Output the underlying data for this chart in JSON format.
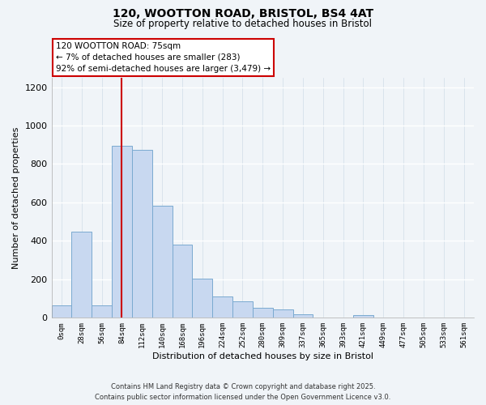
{
  "title": "120, WOOTTON ROAD, BRISTOL, BS4 4AT",
  "subtitle": "Size of property relative to detached houses in Bristol",
  "xlabel": "Distribution of detached houses by size in Bristol",
  "ylabel": "Number of detached properties",
  "bar_color": "#c8d8f0",
  "bar_edge_color": "#7aaad0",
  "bin_labels": [
    "0sqm",
    "28sqm",
    "56sqm",
    "84sqm",
    "112sqm",
    "140sqm",
    "168sqm",
    "196sqm",
    "224sqm",
    "252sqm",
    "280sqm",
    "309sqm",
    "337sqm",
    "365sqm",
    "393sqm",
    "421sqm",
    "449sqm",
    "477sqm",
    "505sqm",
    "533sqm",
    "561sqm"
  ],
  "bar_heights": [
    65,
    450,
    65,
    895,
    875,
    585,
    380,
    205,
    110,
    85,
    52,
    45,
    18,
    0,
    0,
    15,
    0,
    0,
    0,
    0,
    0
  ],
  "ylim": [
    0,
    1250
  ],
  "yticks": [
    0,
    200,
    400,
    600,
    800,
    1000,
    1200
  ],
  "vertical_line_x": 3.0,
  "vline_color": "#cc0000",
  "annotation_title": "120 WOOTTON ROAD: 75sqm",
  "annotation_line1": "← 7% of detached houses are smaller (283)",
  "annotation_line2": "92% of semi-detached houses are larger (3,479) →",
  "annotation_box_color": "#ffffff",
  "annotation_box_edge": "#cc0000",
  "footer_line1": "Contains HM Land Registry data © Crown copyright and database right 2025.",
  "footer_line2": "Contains public sector information licensed under the Open Government Licence v3.0.",
  "background_color": "#f0f4f8",
  "grid_color": "#d0dce8"
}
